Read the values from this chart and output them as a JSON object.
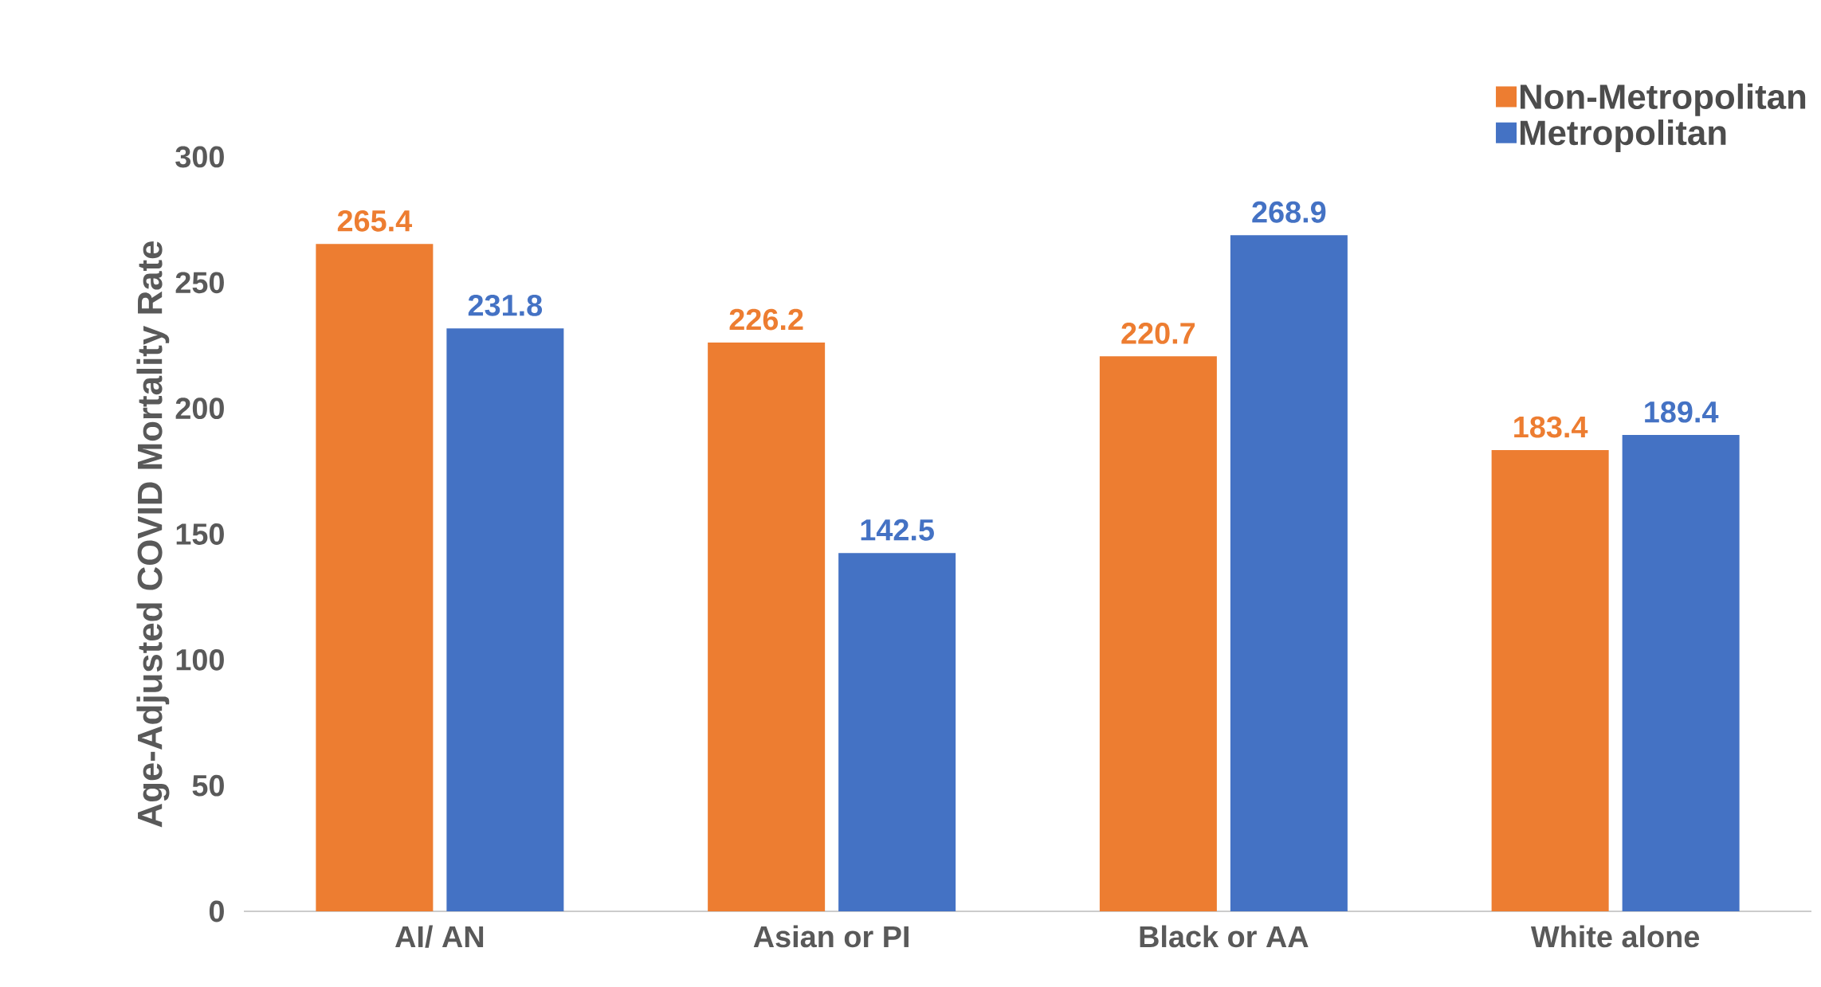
{
  "chart_data": {
    "type": "bar",
    "ylabel": "Age-Adjusted COVID Mortality Rate",
    "categories": [
      "AI/ AN",
      "Asian or PI",
      "Black or AA",
      "White alone"
    ],
    "series": [
      {
        "name": "Non-Metropolitan",
        "color": "#ed7d31",
        "values": [
          265.4,
          226.2,
          220.7,
          183.4
        ]
      },
      {
        "name": "Metropolitan",
        "color": "#4472c4",
        "values": [
          231.8,
          142.5,
          268.9,
          189.4
        ]
      }
    ],
    "ylim": [
      0,
      300
    ],
    "yticks": [
      0,
      50,
      100,
      150,
      200,
      250,
      300
    ],
    "data_labels": true,
    "legend": "top right"
  }
}
